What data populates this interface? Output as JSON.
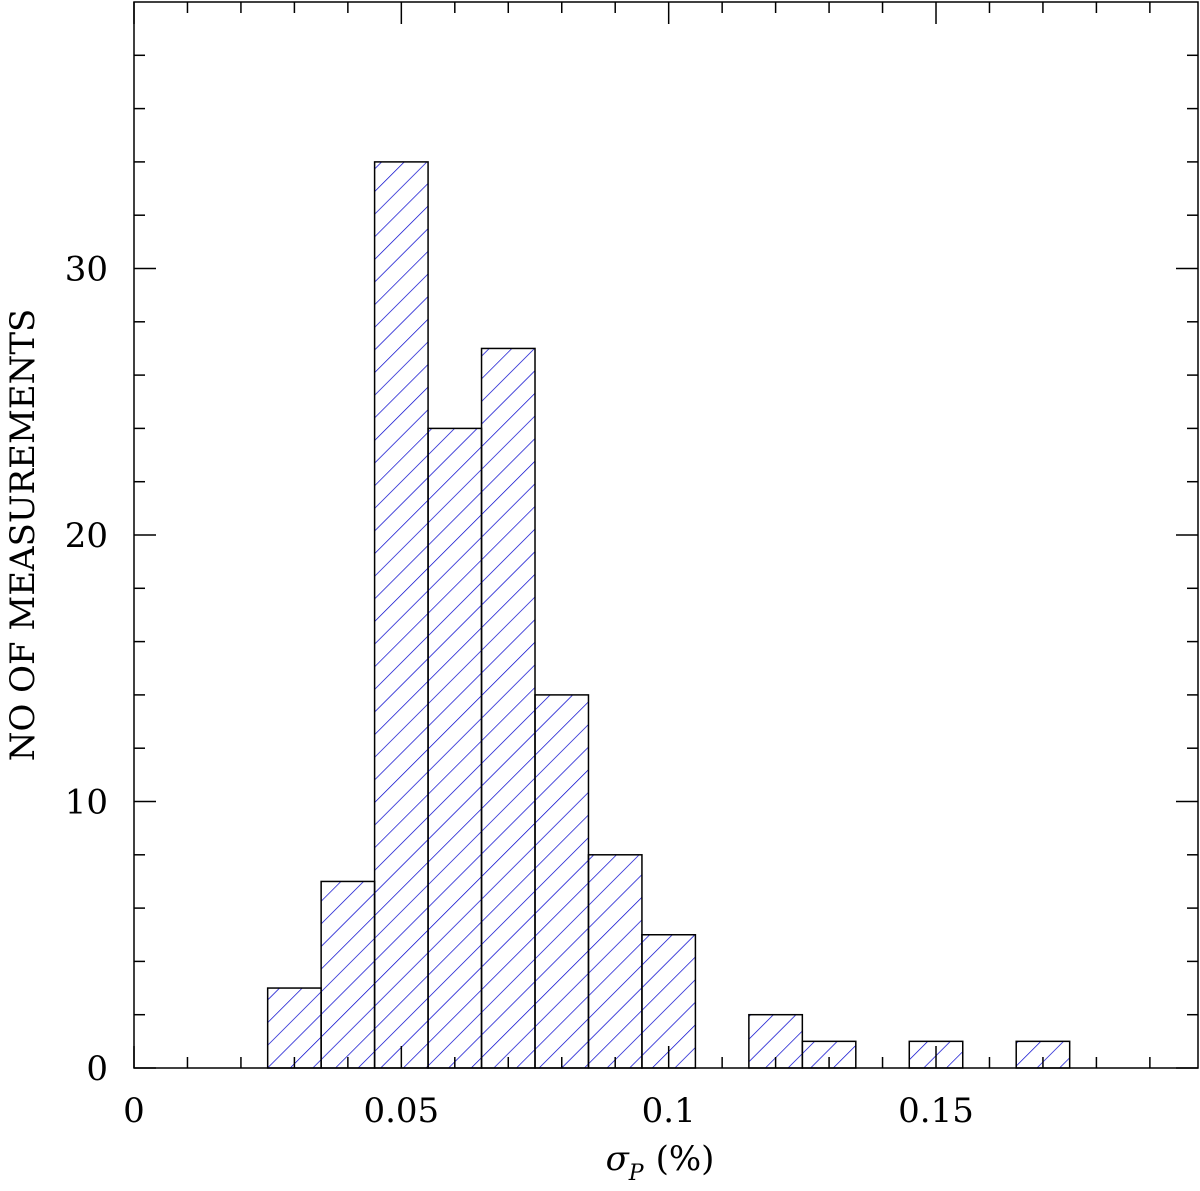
{
  "chart_data": {
    "type": "histogram",
    "xlabel_symbol": "σ",
    "xlabel_subscript": "P",
    "xlabel_unit": "(%)",
    "ylabel": "NO OF MEASUREMENTS",
    "bins": [
      0.025,
      0.035,
      0.045,
      0.055,
      0.065,
      0.075,
      0.085,
      0.095,
      0.105,
      0.115,
      0.125,
      0.135,
      0.145,
      0.155,
      0.165,
      0.175
    ],
    "values": [
      3,
      7,
      34,
      24,
      27,
      14,
      8,
      5,
      0,
      2,
      1,
      0,
      1,
      0,
      1
    ],
    "color": "#0000cc",
    "xlim": [
      0,
      0.199
    ],
    "ylim": [
      0,
      40
    ],
    "xticks": [
      0,
      0.05,
      0.1,
      0.15
    ],
    "yticks": [
      0,
      10,
      20,
      30
    ],
    "xminorticks": [
      0.01,
      0.02,
      0.03,
      0.04,
      0.06,
      0.07,
      0.08,
      0.09,
      0.11,
      0.12,
      0.13,
      0.14,
      0.16,
      0.17,
      0.18,
      0.19
    ],
    "yminorticks": [
      2,
      4,
      6,
      8,
      12,
      14,
      16,
      18,
      22,
      24,
      26,
      28,
      32,
      34,
      36,
      38
    ]
  }
}
